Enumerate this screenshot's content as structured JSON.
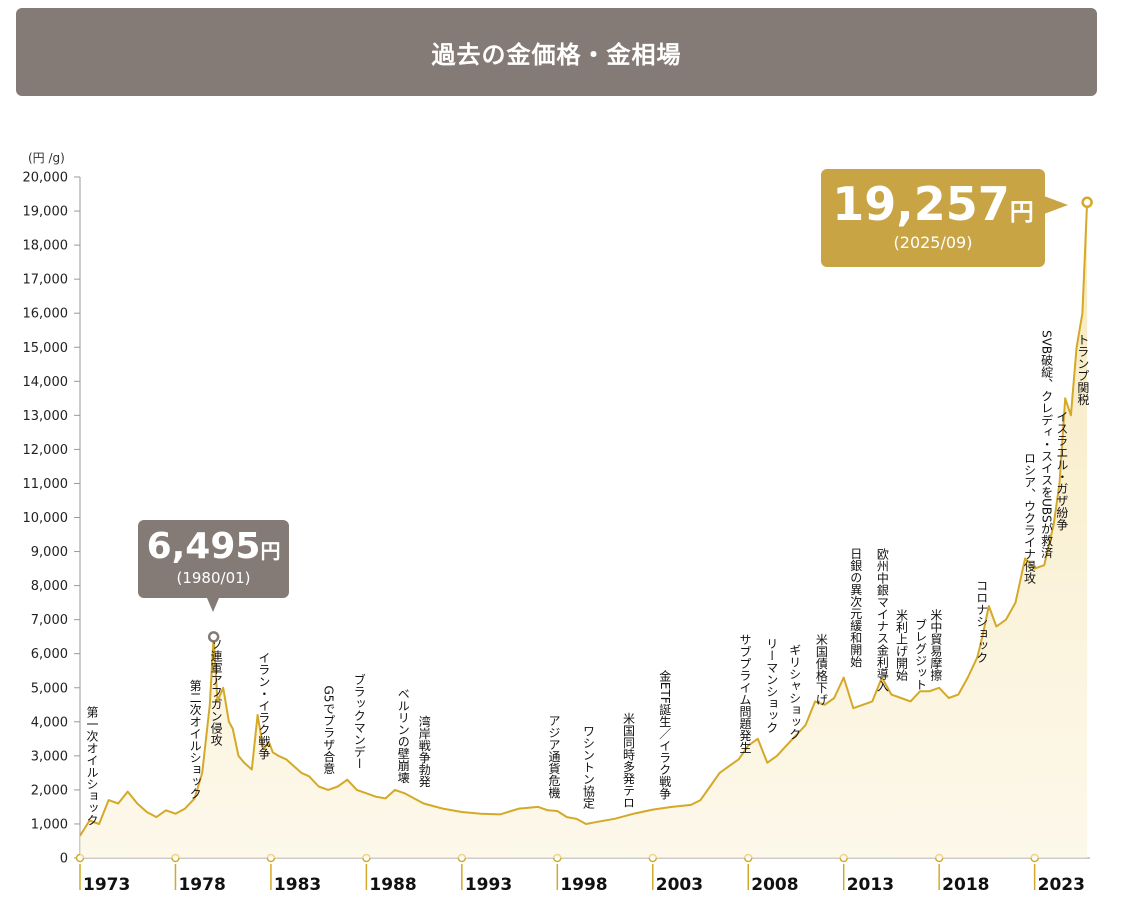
{
  "header": {
    "title": "過去の金価格・金相場"
  },
  "chart_data": {
    "type": "area",
    "title": "過去の金価格・金相場",
    "ylabel": "(円 /g)",
    "ylim": [
      0,
      20000
    ],
    "yticks": [
      0,
      1000,
      2000,
      3000,
      4000,
      5000,
      6000,
      7000,
      8000,
      9000,
      10000,
      11000,
      12000,
      13000,
      14000,
      15000,
      16000,
      17000,
      18000,
      19000,
      20000
    ],
    "ytick_labels": [
      "0",
      "1,000",
      "2,000",
      "3,000",
      "4,000",
      "5,000",
      "6,000",
      "7,000",
      "8,000",
      "9,000",
      "10,000",
      "11,000",
      "12,000",
      "13,000",
      "14,000",
      "15,000",
      "16,000",
      "17,000",
      "18,000",
      "19,000",
      "20,000"
    ],
    "xlim": [
      1973,
      2025.9
    ],
    "xticks": [
      1973,
      1978,
      1983,
      1988,
      1993,
      1998,
      2003,
      2008,
      2013,
      2018,
      2023
    ],
    "xtick_labels": [
      "1973",
      "1978",
      "1983",
      "1988",
      "1993",
      "1998",
      "2003",
      "2008",
      "2013",
      "2018",
      "2023"
    ],
    "series": [
      {
        "name": "金価格 (円/g)",
        "x": [
          1973.0,
          1973.5,
          1974.0,
          1974.5,
          1975.0,
          1975.5,
          1976.0,
          1976.5,
          1977.0,
          1977.5,
          1978.0,
          1978.5,
          1979.0,
          1979.4,
          1979.8,
          1980.0,
          1980.2,
          1980.5,
          1980.8,
          1981.0,
          1981.3,
          1981.6,
          1982.0,
          1982.3,
          1982.6,
          1982.9,
          1983.1,
          1983.4,
          1983.8,
          1984.2,
          1984.6,
          1985.0,
          1985.5,
          1986.0,
          1986.5,
          1987.0,
          1987.5,
          1988.0,
          1988.5,
          1989.0,
          1989.5,
          1990.0,
          1990.5,
          1991.0,
          1992.0,
          1993.0,
          1994.0,
          1995.0,
          1996.0,
          1997.0,
          1997.5,
          1998.0,
          1998.5,
          1999.0,
          1999.5,
          2000.0,
          2001.0,
          2002.0,
          2003.0,
          2004.0,
          2005.0,
          2005.5,
          2006.0,
          2006.5,
          2007.0,
          2007.5,
          2008.0,
          2008.5,
          2009.0,
          2009.5,
          2010.0,
          2011.0,
          2011.5,
          2012.0,
          2012.5,
          2013.0,
          2013.5,
          2014.0,
          2014.5,
          2015.0,
          2015.5,
          2016.0,
          2016.5,
          2017.0,
          2017.5,
          2018.0,
          2018.5,
          2019.0,
          2019.5,
          2020.0,
          2020.3,
          2020.6,
          2021.0,
          2021.5,
          2022.0,
          2022.5,
          2023.0,
          2023.5,
          2024.0,
          2024.3,
          2024.6,
          2024.9,
          2025.2,
          2025.5,
          2025.75
        ],
        "values": [
          650,
          1100,
          1000,
          1700,
          1600,
          1950,
          1600,
          1350,
          1200,
          1400,
          1300,
          1450,
          1750,
          2500,
          4500,
          6495,
          4600,
          5000,
          4000,
          3800,
          3000,
          2800,
          2600,
          4200,
          3200,
          3400,
          3100,
          3000,
          2900,
          2700,
          2500,
          2400,
          2100,
          2000,
          2100,
          2300,
          2000,
          1900,
          1800,
          1750,
          2000,
          1900,
          1750,
          1600,
          1450,
          1350,
          1300,
          1280,
          1450,
          1500,
          1400,
          1380,
          1200,
          1150,
          1000,
          1050,
          1150,
          1300,
          1420,
          1500,
          1560,
          1700,
          2100,
          2500,
          2700,
          2900,
          3300,
          3500,
          2800,
          3000,
          3300,
          3900,
          4600,
          4500,
          4700,
          5300,
          4400,
          4500,
          4600,
          5300,
          4800,
          4700,
          4600,
          4900,
          4900,
          5000,
          4700,
          4800,
          5300,
          5900,
          6600,
          7400,
          6800,
          7000,
          7500,
          8800,
          8500,
          8600,
          9800,
          11000,
          13500,
          13000,
          15000,
          16000,
          19257
        ]
      }
    ],
    "highlights": [
      {
        "x": 1980.0,
        "y": 6495,
        "value": "6,495",
        "unit": "円",
        "date": "(1980/01)"
      },
      {
        "x": 2025.75,
        "y": 19257,
        "value": "19,257",
        "unit": "円",
        "date": "(2025/09)"
      }
    ],
    "annotations": [
      {
        "year": 1973.0,
        "text": "第一次オイルショック"
      },
      {
        "year": 1978.4,
        "text": "第二次オイルショック"
      },
      {
        "year": 1979.5,
        "text": "ソ連軍アフガン侵攻"
      },
      {
        "year": 1982.0,
        "text": "イラン・イラク戦争"
      },
      {
        "year": 1985.4,
        "text": "G5でプラザ合意"
      },
      {
        "year": 1987.0,
        "text": "ブラックマンデー"
      },
      {
        "year": 1989.3,
        "text": "ベルリンの壁崩壊"
      },
      {
        "year": 1990.4,
        "text": "湾岸戦争勃発"
      },
      {
        "year": 1997.2,
        "text": "アジア通貨危機"
      },
      {
        "year": 1999.0,
        "text": "ワシントン協定"
      },
      {
        "year": 2001.1,
        "text": "米国同時多発テロ"
      },
      {
        "year": 2003.0,
        "text": "金ETF誕生／イラク戦争"
      },
      {
        "year": 2007.2,
        "text": "サブプライム問題発生"
      },
      {
        "year": 2008.6,
        "text": "リーマンショック"
      },
      {
        "year": 2009.8,
        "text": "ギリシャショック"
      },
      {
        "year": 2011.2,
        "text": "米国債格下げ"
      },
      {
        "year": 2013.0,
        "text": "日銀の異次元緩和開始"
      },
      {
        "year": 2014.4,
        "text": "欧州中銀マイナス金利導入"
      },
      {
        "year": 2015.4,
        "text": "米利上げ開始"
      },
      {
        "year": 2016.4,
        "text": "ブレグジット"
      },
      {
        "year": 2017.2,
        "text": "米中貿易摩擦"
      },
      {
        "year": 2019.6,
        "text": "コロナショック"
      },
      {
        "year": 2022.1,
        "text": "ロシア、ウクライナ侵攻"
      },
      {
        "year": 2023.0,
        "text": "SVB破綻、クレディ・スイスをUBSが救済"
      },
      {
        "year": 2023.8,
        "text": "イスラエル・ガザ紛争"
      },
      {
        "year": 2024.9,
        "text": "トランプ関税"
      }
    ]
  },
  "colors": {
    "line": "#d4a928",
    "fill": "#f8edc8",
    "axis": "#999999",
    "header": "#847a76",
    "callout_recent": "#c8a445",
    "callout_past": "#847a76"
  }
}
